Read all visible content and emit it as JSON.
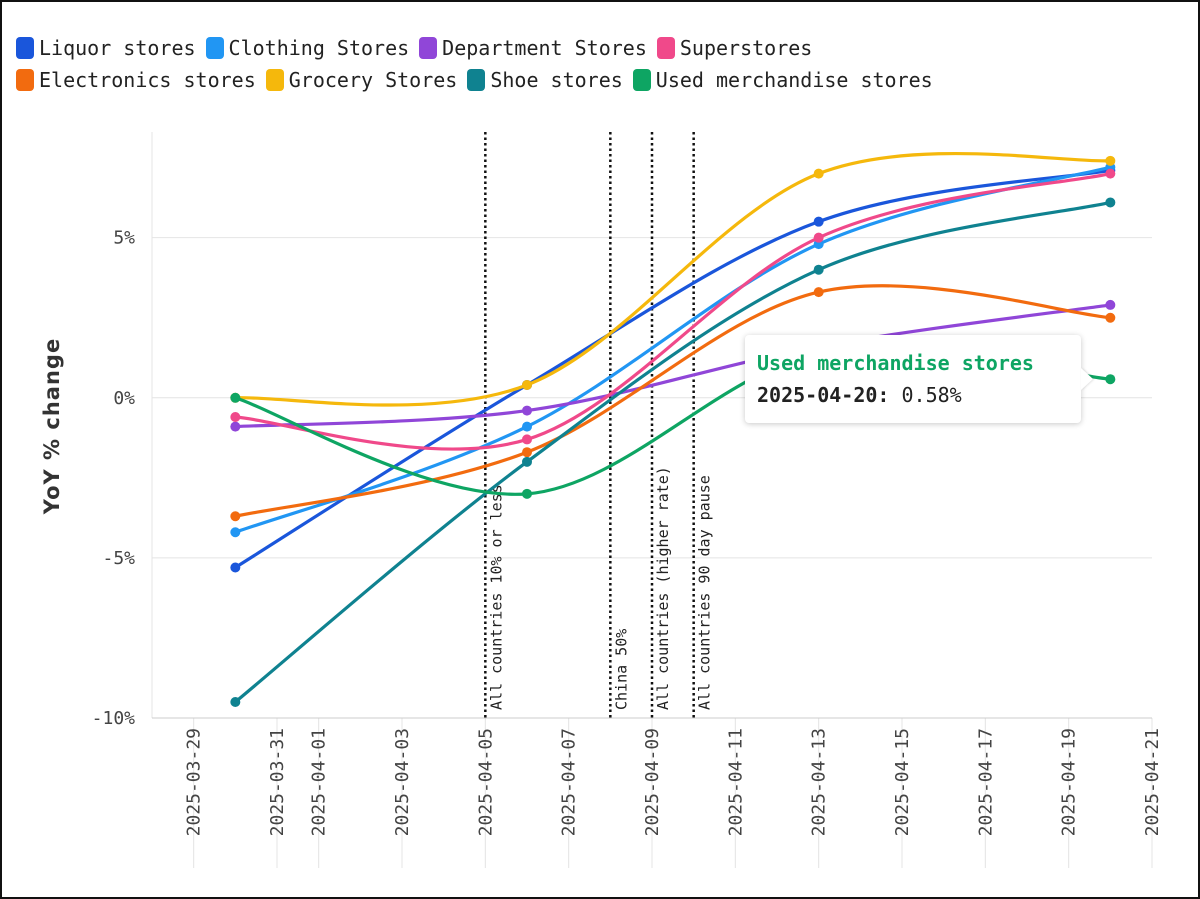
{
  "chart_data": {
    "type": "line",
    "title": "",
    "xlabel": "",
    "ylabel": "YoY % change",
    "x_ticks": [
      "2025-03-29",
      "2025-03-31",
      "2025-04-01",
      "2025-04-03",
      "2025-04-05",
      "2025-04-07",
      "2025-04-09",
      "2025-04-11",
      "2025-04-13",
      "2025-04-15",
      "2025-04-17",
      "2025-04-19",
      "2025-04-21"
    ],
    "xlim": [
      "2025-03-28",
      "2025-04-21"
    ],
    "y_ticks": [
      {
        "value": 5,
        "label": "5%"
      },
      {
        "value": 0,
        "label": "0%"
      },
      {
        "value": -5,
        "label": "-5%"
      },
      {
        "value": -10,
        "label": "-10%"
      }
    ],
    "ylim": [
      -10,
      8.3
    ],
    "grid": "horizontal",
    "legend_position": "top",
    "x": [
      "2025-03-30",
      "2025-04-06",
      "2025-04-13",
      "2025-04-20"
    ],
    "series": [
      {
        "name": "Liquor stores",
        "color": "#1a56db",
        "values": [
          -5.3,
          0.4,
          5.5,
          7.1
        ]
      },
      {
        "name": "Clothing Stores",
        "color": "#2196f3",
        "values": [
          -4.2,
          -0.9,
          4.8,
          7.2
        ]
      },
      {
        "name": "Department Stores",
        "color": "#9046d8",
        "values": [
          -0.9,
          -0.4,
          1.6,
          2.9
        ]
      },
      {
        "name": "Superstores",
        "color": "#f0498a",
        "values": [
          -0.6,
          -1.3,
          5.0,
          7.0
        ]
      },
      {
        "name": "Electronics stores",
        "color": "#f26b0f",
        "values": [
          -3.7,
          -1.7,
          3.3,
          2.5
        ]
      },
      {
        "name": "Grocery Stores",
        "color": "#f5b80c",
        "values": [
          0.0,
          0.4,
          7.0,
          7.4
        ]
      },
      {
        "name": "Shoe stores",
        "color": "#0f8290",
        "values": [
          -9.5,
          -2.0,
          4.0,
          6.1
        ]
      },
      {
        "name": "Used merchandise stores",
        "color": "#0ea563",
        "values": [
          0.0,
          -3.0,
          1.4,
          0.58
        ]
      }
    ],
    "annotations": [
      {
        "x": "2025-04-05",
        "label": "All countries 10% or less"
      },
      {
        "x": "2025-04-08",
        "label": "China 50%"
      },
      {
        "x": "2025-04-09",
        "label": "All countries (higher rate)"
      },
      {
        "x": "2025-04-10",
        "label": "All countries 90 day pause"
      }
    ]
  },
  "tooltip": {
    "series": "Used merchandise stores",
    "color": "#0ea563",
    "date": "2025-04-20",
    "separator": ":",
    "value": "0.58%"
  }
}
